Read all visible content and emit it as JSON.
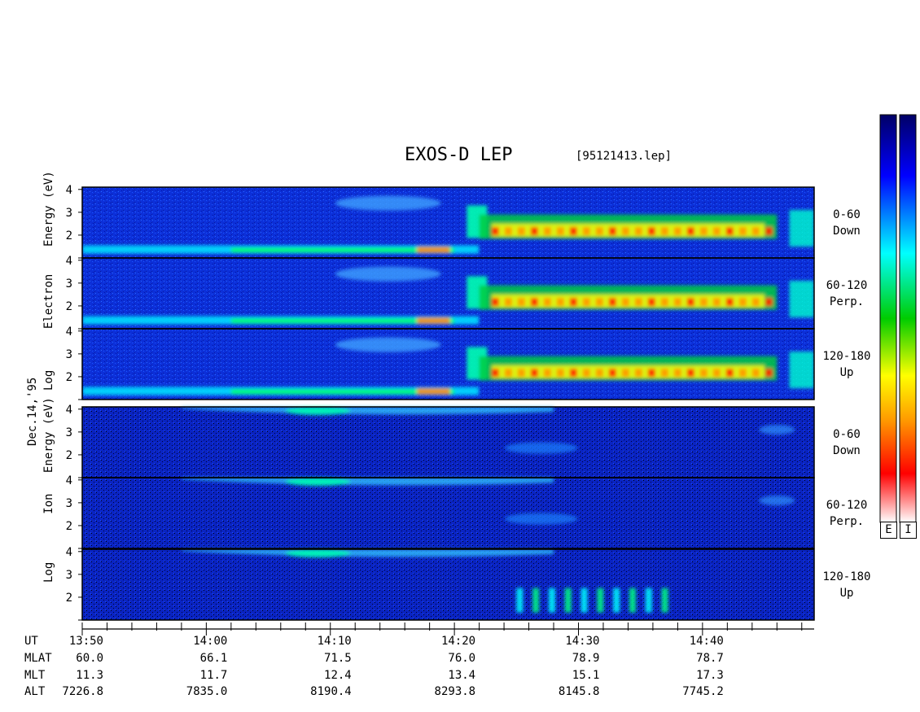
{
  "header": {
    "title": "EXOS-D LEP",
    "filename": "[95121413.lep]"
  },
  "left_labels": {
    "electron": [
      "Log",
      "Electron",
      "Energy",
      "(eV)"
    ],
    "ion": [
      "Log",
      "Ion",
      "Energy",
      "(eV)"
    ],
    "date": "Dec.14,'95"
  },
  "panels": [
    {
      "species": "Electron",
      "angle": "0-60",
      "direction": "Down"
    },
    {
      "species": "Electron",
      "angle": "60-120",
      "direction": "Perp."
    },
    {
      "species": "Electron",
      "angle": "120-180",
      "direction": "Up"
    },
    {
      "species": "Ion",
      "angle": "0-60",
      "direction": "Down"
    },
    {
      "species": "Ion",
      "angle": "60-120",
      "direction": "Perp."
    },
    {
      "species": "Ion",
      "angle": "120-180",
      "direction": "Up"
    }
  ],
  "colorbars": {
    "labels": [
      "E",
      "I"
    ],
    "colors": [
      "#ffffff",
      "#ff0000",
      "#ffa500",
      "#ffff00",
      "#00ff00",
      "#00ffff",
      "#0000ff",
      "#000080"
    ]
  },
  "chart_data": {
    "type": "heatmap",
    "title": "EXOS-D LEP",
    "ylabel_electron": "Log Electron Energy (eV)",
    "ylabel_ion": "Log Ion Energy (eV)",
    "yticks": [
      "4",
      "3",
      "2"
    ],
    "y_range": [
      1,
      4.1
    ],
    "x_time_ticks": [
      "13:50",
      "14:00",
      "14:10",
      "14:20",
      "14:30",
      "14:40"
    ],
    "x_range": [
      "13:50",
      "14:49"
    ]
  },
  "orbit_table": {
    "row_labels": [
      "UT",
      "MLAT",
      "MLT",
      "ALT"
    ],
    "columns": [
      {
        "UT": "13:50",
        "MLAT": "60.0",
        "MLT": "11.3",
        "ALT": "7226.8"
      },
      {
        "UT": "14:00",
        "MLAT": "66.1",
        "MLT": "11.7",
        "ALT": "7835.0"
      },
      {
        "UT": "14:10",
        "MLAT": "71.5",
        "MLT": "12.4",
        "ALT": "8190.4"
      },
      {
        "UT": "14:20",
        "MLAT": "76.0",
        "MLT": "13.4",
        "ALT": "8293.8"
      },
      {
        "UT": "14:30",
        "MLAT": "78.9",
        "MLT": "15.1",
        "ALT": "8145.8"
      },
      {
        "UT": "14:40",
        "MLAT": "78.7",
        "MLT": "17.3",
        "ALT": "7745.2"
      }
    ]
  }
}
